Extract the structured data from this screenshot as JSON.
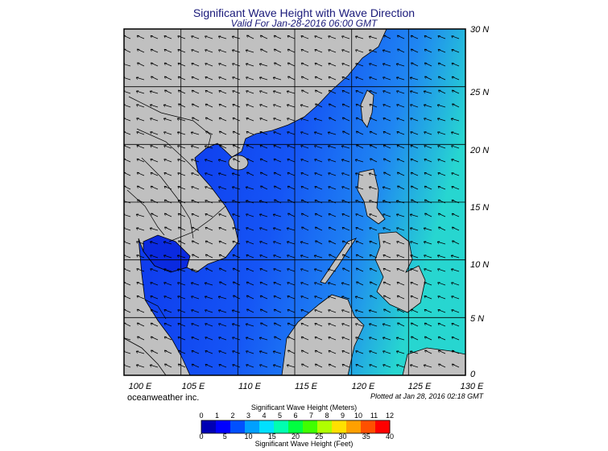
{
  "header": {
    "title": "Significant Wave Height with Wave Direction",
    "subtitle": "Valid For Jan-28-2016 06:00 GMT"
  },
  "map": {
    "lat_labels": [
      "30 N",
      "25 N",
      "20 N",
      "15 N",
      "10 N",
      "5 N",
      "0"
    ],
    "lon_labels": [
      "100 E",
      "105 E",
      "110 E",
      "115 E",
      "120 E",
      "125 E",
      "130 E"
    ],
    "extent": {
      "lon": [
        100,
        130
      ],
      "lat": [
        0,
        30
      ]
    },
    "land_color": "#c0c0c0",
    "dominant_wave_direction": "from northeast"
  },
  "footer": {
    "brand": "oceanweather inc.",
    "plotted": "Plotted at Jan 28, 2016 02:18 GMT"
  },
  "colorbar": {
    "top_title": "Significant Wave Height (Meters)",
    "bottom_title": "Significant Wave Height (Feet)",
    "meters_ticks": [
      "0",
      "1",
      "2",
      "3",
      "4",
      "5",
      "6",
      "7",
      "8",
      "9",
      "10",
      "11",
      "12"
    ],
    "feet_ticks": [
      "0",
      "5",
      "10",
      "15",
      "20",
      "25",
      "30",
      "35",
      "40"
    ],
    "colors": [
      "#0000b4",
      "#0000ff",
      "#0050ff",
      "#00a0ff",
      "#00e0ff",
      "#00ffb0",
      "#00ff40",
      "#40ff00",
      "#b0ff00",
      "#ffe000",
      "#ffa000",
      "#ff5000",
      "#ff0000"
    ]
  }
}
